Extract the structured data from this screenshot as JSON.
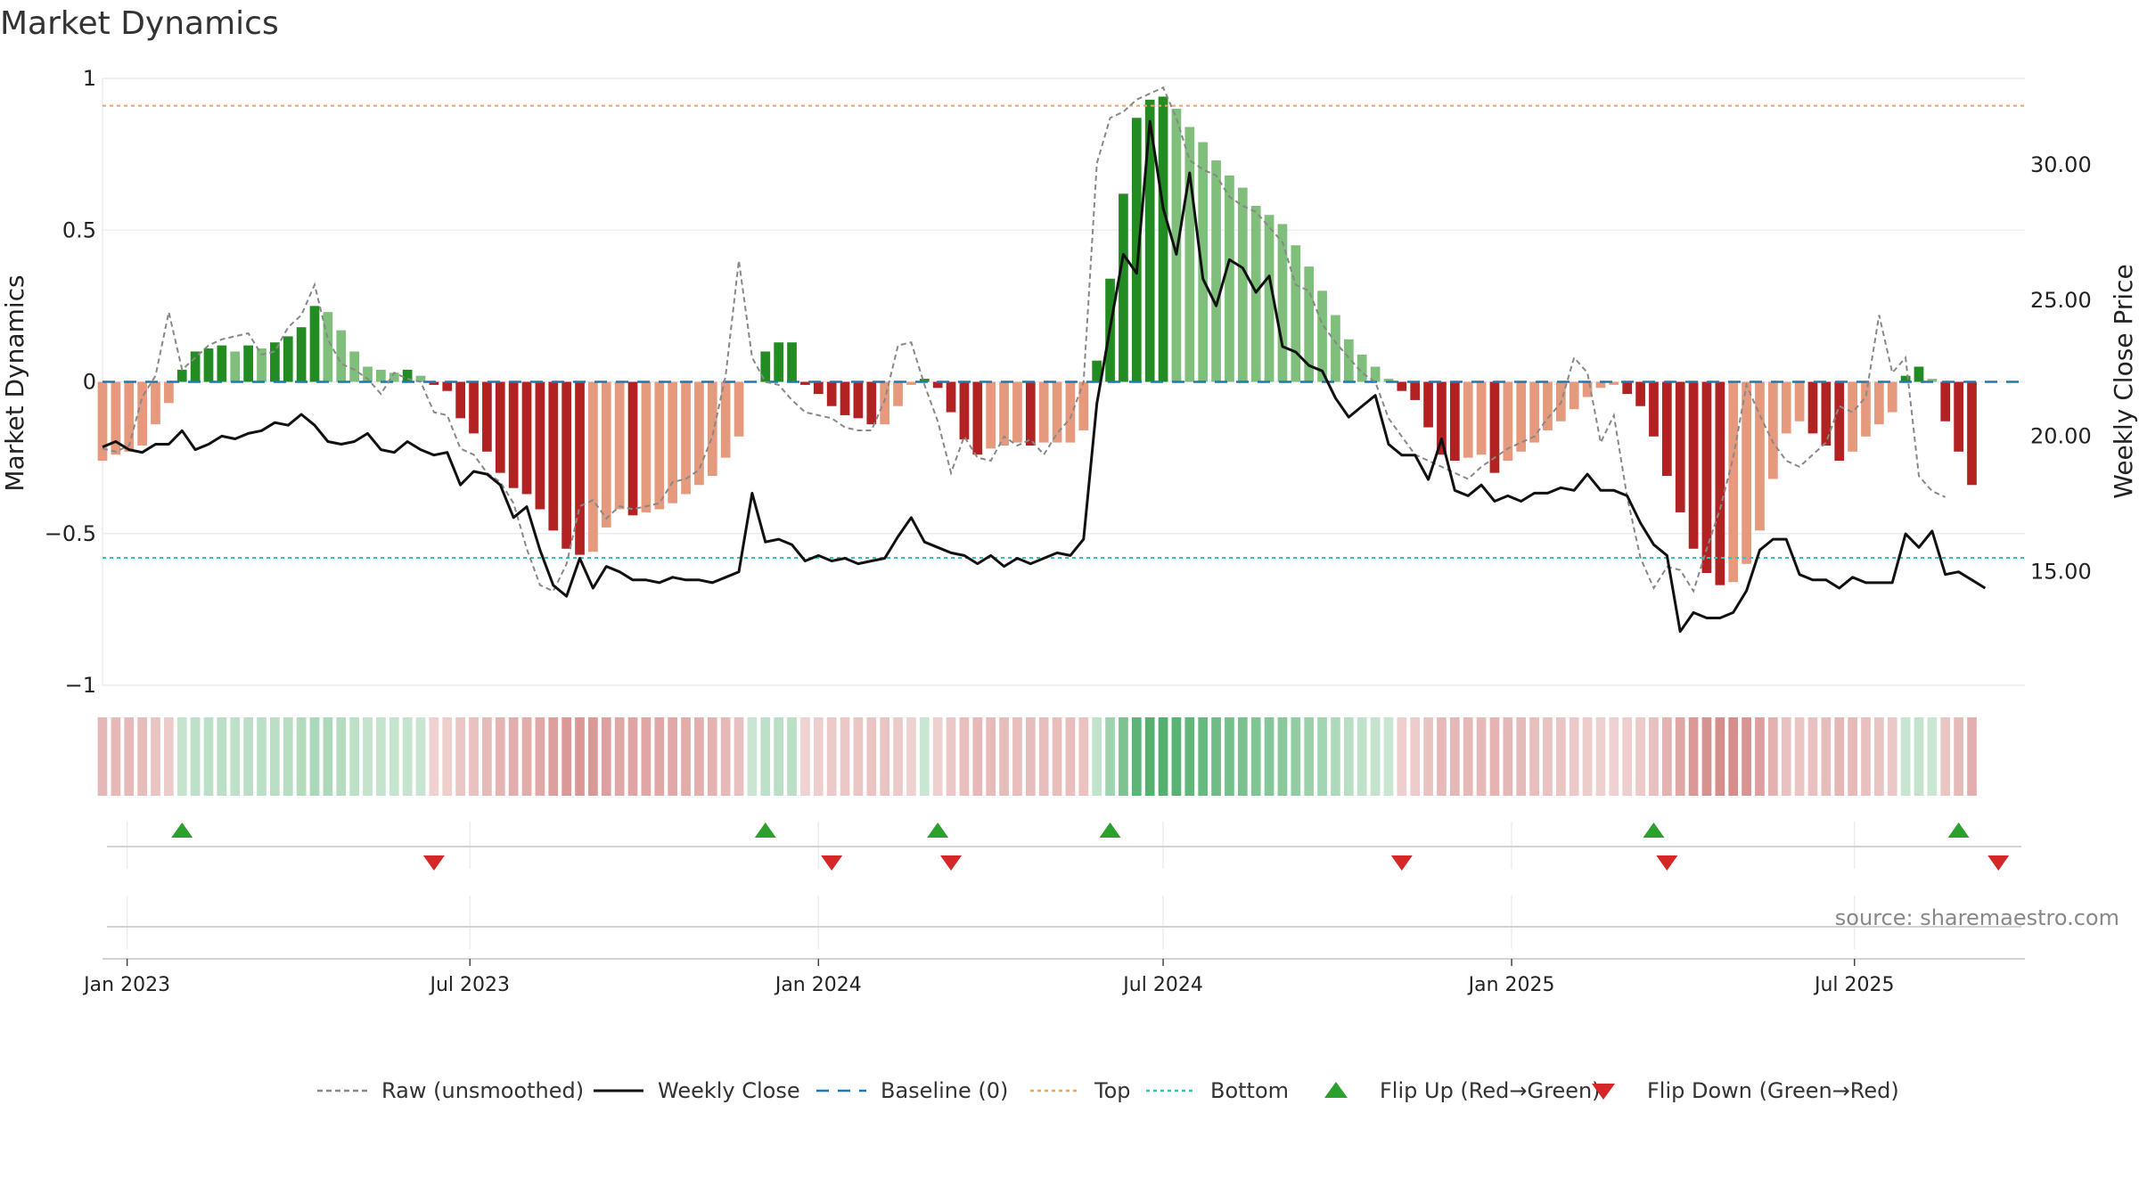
{
  "chart_data": {
    "type": "bar",
    "title": "Market Dynamics",
    "ylabel": "Market Dynamics",
    "y2label": "Weekly Close Price",
    "ylim": [
      -1,
      1
    ],
    "y2lim": [
      10.82,
      33.18
    ],
    "yticks": [
      "1",
      "0.5",
      "0",
      "−0.5",
      "−1"
    ],
    "y2ticks": [
      "30.00",
      "25.00",
      "20.00",
      "15.00"
    ],
    "xlim": [
      "2022-12-19",
      "2025-09-29"
    ],
    "xticks": [
      {
        "date": "2023-01-01",
        "label": "Jan 2023"
      },
      {
        "date": "2023-07-01",
        "label": "Jul 2023"
      },
      {
        "date": "2024-01-01",
        "label": "Jan 2024"
      },
      {
        "date": "2024-07-01",
        "label": "Jul 2024"
      },
      {
        "date": "2025-01-01",
        "label": "Jan 2025"
      },
      {
        "date": "2025-07-01",
        "label": "Jul 2025"
      }
    ],
    "start_week": "2022-12-19",
    "top_level": 0.91,
    "bottom_level": -0.58,
    "momentum": [
      -0.26,
      -0.24,
      -0.23,
      -0.21,
      -0.14,
      -0.07,
      0.04,
      0.1,
      0.11,
      0.12,
      0.1,
      0.12,
      0.11,
      0.13,
      0.15,
      0.18,
      0.25,
      0.23,
      0.17,
      0.1,
      0.05,
      0.04,
      0.03,
      0.04,
      0.02,
      -0.01,
      -0.03,
      -0.12,
      -0.17,
      -0.23,
      -0.3,
      -0.35,
      -0.37,
      -0.42,
      -0.49,
      -0.55,
      -0.57,
      -0.56,
      -0.48,
      -0.42,
      -0.44,
      -0.43,
      -0.42,
      -0.4,
      -0.37,
      -0.34,
      -0.31,
      -0.25,
      -0.18,
      0.0,
      0.1,
      0.13,
      0.13,
      -0.01,
      -0.04,
      -0.08,
      -0.11,
      -0.12,
      -0.14,
      -0.14,
      -0.08,
      -0.01,
      0.01,
      -0.02,
      -0.1,
      -0.19,
      -0.24,
      -0.22,
      -0.21,
      -0.2,
      -0.21,
      -0.2,
      -0.2,
      -0.2,
      -0.16,
      0.07,
      0.34,
      0.62,
      0.87,
      0.93,
      0.94,
      0.9,
      0.84,
      0.79,
      0.73,
      0.68,
      0.64,
      0.58,
      0.55,
      0.52,
      0.45,
      0.38,
      0.3,
      0.22,
      0.14,
      0.09,
      0.05,
      0.01,
      -0.03,
      -0.06,
      -0.15,
      -0.24,
      -0.26,
      -0.25,
      -0.24,
      -0.3,
      -0.26,
      -0.23,
      -0.2,
      -0.16,
      -0.13,
      -0.09,
      -0.05,
      -0.02,
      -0.01,
      -0.04,
      -0.08,
      -0.18,
      -0.31,
      -0.43,
      -0.55,
      -0.63,
      -0.67,
      -0.66,
      -0.6,
      -0.49,
      -0.32,
      -0.17,
      -0.13,
      -0.17,
      -0.21,
      -0.26,
      -0.23,
      -0.18,
      -0.14,
      -0.1,
      0.02,
      0.05,
      0.01,
      -0.13,
      -0.23,
      -0.34
    ],
    "raw": [
      -0.22,
      -0.23,
      -0.21,
      -0.05,
      0.02,
      0.23,
      0.04,
      0.08,
      0.12,
      0.14,
      0.15,
      0.16,
      0.09,
      0.1,
      0.18,
      0.22,
      0.32,
      0.14,
      0.06,
      0.04,
      0.01,
      -0.04,
      0.03,
      0.01,
      0.0,
      -0.1,
      -0.11,
      -0.22,
      -0.24,
      -0.3,
      -0.33,
      -0.4,
      -0.55,
      -0.67,
      -0.69,
      -0.6,
      -0.41,
      -0.39,
      -0.45,
      -0.41,
      -0.42,
      -0.41,
      -0.4,
      -0.33,
      -0.32,
      -0.29,
      -0.18,
      0.02,
      0.4,
      0.08,
      0.0,
      -0.01,
      -0.06,
      -0.1,
      -0.11,
      -0.12,
      -0.15,
      -0.16,
      -0.16,
      -0.06,
      0.12,
      0.13,
      -0.01,
      -0.13,
      -0.3,
      -0.18,
      -0.25,
      -0.26,
      -0.18,
      -0.21,
      -0.19,
      -0.24,
      -0.17,
      -0.12,
      0.0,
      0.72,
      0.87,
      0.89,
      0.93,
      0.95,
      0.97,
      0.87,
      0.73,
      0.7,
      0.68,
      0.61,
      0.58,
      0.56,
      0.51,
      0.46,
      0.32,
      0.3,
      0.19,
      0.13,
      0.08,
      0.03,
      0.0,
      -0.12,
      -0.18,
      -0.24,
      -0.26,
      -0.28,
      -0.3,
      -0.32,
      -0.28,
      -0.25,
      -0.22,
      -0.2,
      -0.18,
      -0.12,
      -0.07,
      0.08,
      0.03,
      -0.2,
      -0.11,
      -0.38,
      -0.58,
      -0.68,
      -0.61,
      -0.62,
      -0.69,
      -0.55,
      -0.42,
      -0.25,
      -0.01,
      -0.11,
      -0.2,
      -0.26,
      -0.28,
      -0.24,
      -0.2,
      -0.08,
      -0.1,
      -0.05,
      0.22,
      0.03,
      0.08,
      -0.31,
      -0.36,
      -0.38
    ]
  },
  "price": [
    19.6,
    19.8,
    19.5,
    19.4,
    19.7,
    19.7,
    20.2,
    19.5,
    19.7,
    20.0,
    19.9,
    20.1,
    20.2,
    20.5,
    20.4,
    20.8,
    20.4,
    19.8,
    19.7,
    19.8,
    20.1,
    19.5,
    19.4,
    19.8,
    19.5,
    19.3,
    19.4,
    18.2,
    18.7,
    18.6,
    18.2,
    17.0,
    17.4,
    15.8,
    14.5,
    14.1,
    15.5,
    14.4,
    15.2,
    15.0,
    14.7,
    14.7,
    14.6,
    14.8,
    14.7,
    14.7,
    14.6,
    14.8,
    15.0,
    17.9,
    16.1,
    16.2,
    16.0,
    15.4,
    15.6,
    15.4,
    15.5,
    15.3,
    15.4,
    15.5,
    16.3,
    17.0,
    16.1,
    15.9,
    15.7,
    15.6,
    15.3,
    15.6,
    15.2,
    15.5,
    15.3,
    15.5,
    15.7,
    15.6,
    16.2,
    21.2,
    24.0,
    26.7,
    26.0,
    31.6,
    28.4,
    26.7,
    29.7,
    25.8,
    24.8,
    26.5,
    26.2,
    25.3,
    25.9,
    23.3,
    23.1,
    22.6,
    22.4,
    21.4,
    20.7,
    21.1,
    21.5,
    19.7,
    19.3,
    19.3,
    18.4,
    19.9,
    18.0,
    17.8,
    18.2,
    17.6,
    17.8,
    17.6,
    17.9,
    17.9,
    18.1,
    18.0,
    18.6,
    18.0,
    18.0,
    17.8,
    16.8,
    16.0,
    15.6,
    12.8,
    13.5,
    13.3,
    13.3,
    13.5,
    14.3,
    15.8,
    16.2,
    16.2,
    14.9,
    14.7,
    14.7,
    14.4,
    14.8,
    14.6,
    14.6,
    14.6,
    16.4,
    15.9,
    16.5,
    14.9,
    15.0,
    14.7,
    14.4
  ],
  "flip_up_weeks": [
    6,
    50,
    63,
    76,
    117,
    140
  ],
  "flip_down_weeks": [
    25,
    55,
    64,
    98,
    118,
    143
  ],
  "legend": [
    {
      "label": "Raw (unsmoothed)",
      "kind": "dashed",
      "color": "#888888"
    },
    {
      "label": "Weekly Close",
      "kind": "solid",
      "color": "#111111"
    },
    {
      "label": "Baseline (0)",
      "kind": "dash",
      "color": "#1f77b4"
    },
    {
      "label": "Top",
      "kind": "dotted",
      "color": "#f4a261"
    },
    {
      "label": "Bottom",
      "kind": "dotted",
      "color": "#2ec4c4"
    },
    {
      "label": "Flip Up (Red→Green)",
      "kind": "up",
      "color": "#2ca02c"
    },
    {
      "label": "Flip Down (Green→Red)",
      "kind": "down",
      "color": "#d62728"
    }
  ],
  "colors": {
    "green_strong": "#228B22",
    "green_light": "#7fbf7b",
    "red_strong": "#b22222",
    "red_light": "#e59a7e",
    "top_line": "#f4a261",
    "bottom_line": "#2ec4c4",
    "baseline": "#1f77b4",
    "flip_up": "#2ca02c",
    "flip_down": "#d62728"
  },
  "source": "source: sharemaestro.com"
}
